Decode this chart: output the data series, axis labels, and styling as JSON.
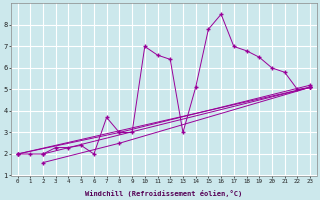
{
  "xlabel": "Windchill (Refroidissement éolien,°C)",
  "bg_color": "#cce8ec",
  "line_color": "#990099",
  "grid_color": "#ffffff",
  "xlim": [
    -0.5,
    23.5
  ],
  "ylim": [
    1,
    9
  ],
  "yticks": [
    1,
    2,
    3,
    4,
    5,
    6,
    7,
    8
  ],
  "xticks": [
    0,
    1,
    2,
    3,
    4,
    5,
    6,
    7,
    8,
    9,
    10,
    11,
    12,
    13,
    14,
    15,
    16,
    17,
    18,
    19,
    20,
    21,
    22,
    23
  ],
  "lines": [
    {
      "x": [
        0,
        1,
        2,
        3,
        4,
        5,
        6,
        7,
        8,
        9,
        10,
        11,
        12,
        13,
        14,
        15,
        16,
        17,
        18,
        19,
        20,
        21,
        22,
        23
      ],
      "y": [
        2,
        2,
        2,
        2.3,
        2.3,
        2.4,
        2.0,
        3.7,
        3.0,
        3.0,
        7.0,
        6.6,
        6.4,
        3.0,
        5.1,
        7.8,
        8.5,
        7.0,
        6.8,
        6.5,
        6.0,
        5.8,
        5.0,
        5.1
      ]
    },
    {
      "x": [
        0,
        23
      ],
      "y": [
        2.0,
        5.1
      ]
    },
    {
      "x": [
        2,
        23
      ],
      "y": [
        2.0,
        5.1
      ]
    },
    {
      "x": [
        0,
        8,
        23
      ],
      "y": [
        2.0,
        3.0,
        5.2
      ]
    },
    {
      "x": [
        2,
        8,
        23
      ],
      "y": [
        1.6,
        2.5,
        5.1
      ]
    }
  ]
}
